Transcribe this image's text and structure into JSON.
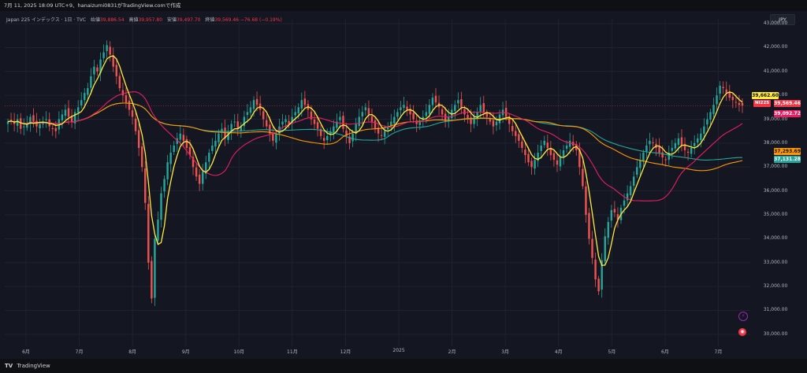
{
  "header": {
    "text": "7月 11, 2025 18:09 UTC+9、hanaizumi0831がTradingView.comで作成"
  },
  "legend": {
    "symbol": "Japan 225 インデックス · 1日 · TVC",
    "open_label": "始値",
    "open": "39,886.54",
    "high_label": "高値",
    "high": "39,957.80",
    "low_label": "安値",
    "low": "39,497.70",
    "close_label": "終値",
    "close": "39,569.46",
    "change": "−76.68 (−0.19%)"
  },
  "currency": "JPY",
  "price_tags": {
    "ma_yellow": "39,662.60",
    "symbol": "NI225",
    "last": "39,569.46",
    "ma_pink": "39,092.72",
    "ma_orange": "37,293.69",
    "ma_teal": "37,131.28"
  },
  "colors": {
    "up": "#26a69a",
    "down": "#ef5350",
    "ma_yellow": "#ffeb3b",
    "ma_pink": "#e91e63",
    "ma_orange": "#ff9800",
    "ma_teal": "#26a69a"
  },
  "footer": {
    "logo": "TV",
    "brand": "TradingView"
  },
  "nav_icons": [
    "lightning-icon",
    "record-icon"
  ],
  "chart_data": {
    "type": "candlestick",
    "y_ticks": [
      "43,000.00",
      "42,000.00",
      "41,000.00",
      "40,000.00",
      "39,000.00",
      "38,000.00",
      "37,000.00",
      "36,000.00",
      "35,000.00",
      "34,000.00",
      "33,000.00",
      "32,000.00",
      "31,000.00",
      "30,000.00"
    ],
    "ylim": [
      29500,
      43200
    ],
    "x_ticks": [
      "6月",
      "7月",
      "8月",
      "9月",
      "10月",
      "11月",
      "12月",
      "2025",
      "2月",
      "3月",
      "4月",
      "5月",
      "6月",
      "7月"
    ],
    "xlim": [
      0,
      14
    ],
    "x_tick_positions": [
      0.4,
      1.4,
      2.4,
      3.4,
      4.4,
      5.4,
      6.4,
      7.4,
      8.4,
      9.4,
      10.4,
      11.4,
      12.4,
      13.4
    ],
    "closes": [
      38900,
      38950,
      38800,
      39000,
      38600,
      38700,
      38850,
      39100,
      38900,
      38700,
      38800,
      38900,
      39000,
      38700,
      38600,
      38500,
      39000,
      39200,
      39400,
      39100,
      38900,
      39300,
      39500,
      39800,
      40100,
      40300,
      40800,
      41200,
      41000,
      41500,
      41800,
      42100,
      41700,
      41200,
      40800,
      40300,
      40000,
      39700,
      39400,
      39100,
      38500,
      37800,
      37000,
      35500,
      33000,
      31500,
      34000,
      34800,
      35900,
      36500,
      37200,
      37600,
      37900,
      38200,
      38400,
      38100,
      37800,
      37500,
      37000,
      36600,
      36300,
      36800,
      37200,
      37600,
      37900,
      38100,
      38400,
      38600,
      38200,
      38500,
      38800,
      38900,
      38600,
      38700,
      39100,
      39300,
      39500,
      39800,
      39600,
      39400,
      39000,
      38700,
      38400,
      38100,
      38400,
      38700,
      38900,
      39000,
      38800,
      39100,
      39300,
      39500,
      39800,
      39600,
      39400,
      39000,
      38800,
      38600,
      38300,
      38100,
      38300,
      38500,
      38700,
      38900,
      39100,
      38600,
      38300,
      38000,
      38400,
      38800,
      39100,
      39300,
      39500,
      39200,
      38900,
      38600,
      38400,
      38300,
      38500,
      38700,
      38900,
      39100,
      39300,
      39500,
      39600,
      39400,
      39200,
      39000,
      38800,
      38900,
      39100,
      39300,
      39600,
      39900,
      39700,
      39500,
      39200,
      38900,
      39100,
      39400,
      39600,
      39800,
      39500,
      39200,
      39000,
      38800,
      39100,
      39300,
      39600,
      39300,
      39100,
      38900,
      38700,
      38900,
      39200,
      39400,
      39100,
      38800,
      38500,
      38300,
      38100,
      37800,
      37500,
      37200,
      37000,
      37300,
      37600,
      37900,
      38100,
      37800,
      37500,
      37300,
      37100,
      37400,
      37700,
      37900,
      38100,
      37900,
      37700,
      37000,
      36200,
      35000,
      34000,
      33200,
      32300,
      31800,
      33100,
      34100,
      34700,
      35200,
      35100,
      34800,
      35300,
      35600,
      35900,
      36200,
      36600,
      37000,
      37300,
      37600,
      37900,
      38100,
      38000,
      37800,
      37600,
      37400,
      37300,
      37600,
      37800,
      38000,
      38200,
      37900,
      37700,
      37600,
      37800,
      38000,
      38200,
      38400,
      38700,
      39000,
      39300,
      39600,
      40000,
      40400,
      40300,
      40100,
      39900,
      39800,
      39700,
      39600,
      39569
    ]
  }
}
